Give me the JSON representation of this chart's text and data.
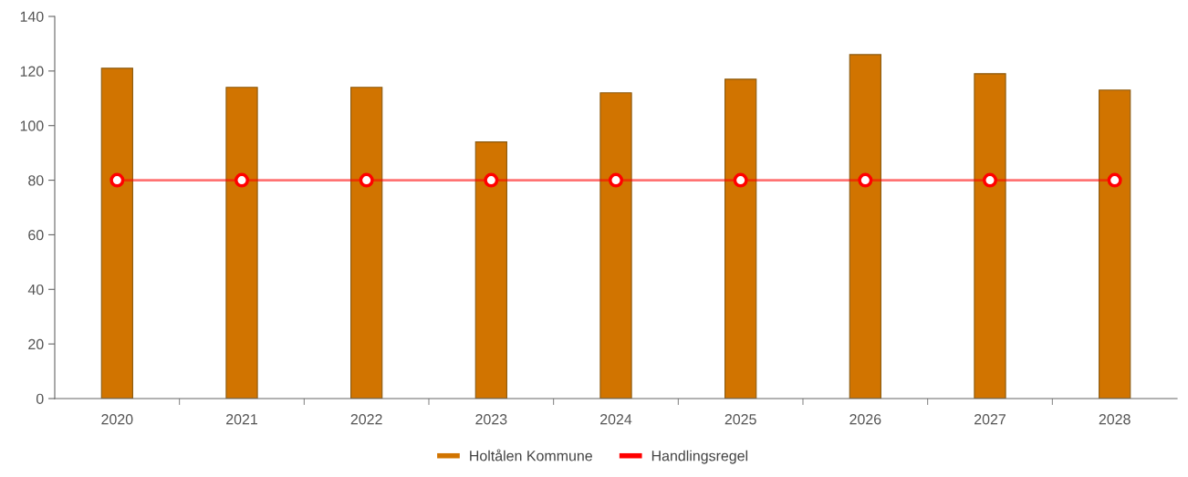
{
  "chart_data": {
    "type": "bar",
    "categories": [
      "2020",
      "2021",
      "2022",
      "2023",
      "2024",
      "2025",
      "2026",
      "2027",
      "2028"
    ],
    "series": [
      {
        "name": "Holtålen Kommune",
        "color": "#d17400",
        "values": [
          121,
          114,
          114,
          94,
          112,
          117,
          126,
          119,
          113
        ]
      },
      {
        "name": "Handlingsregel",
        "type": "line",
        "color": "#ff0000",
        "marker": "circle",
        "values": [
          80,
          80,
          80,
          80,
          80,
          80,
          80,
          80,
          80
        ]
      }
    ],
    "ylim": [
      0,
      140
    ],
    "yticks": [
      0,
      20,
      40,
      60,
      80,
      100,
      120,
      140
    ],
    "grid": false,
    "legend": "bottom"
  }
}
